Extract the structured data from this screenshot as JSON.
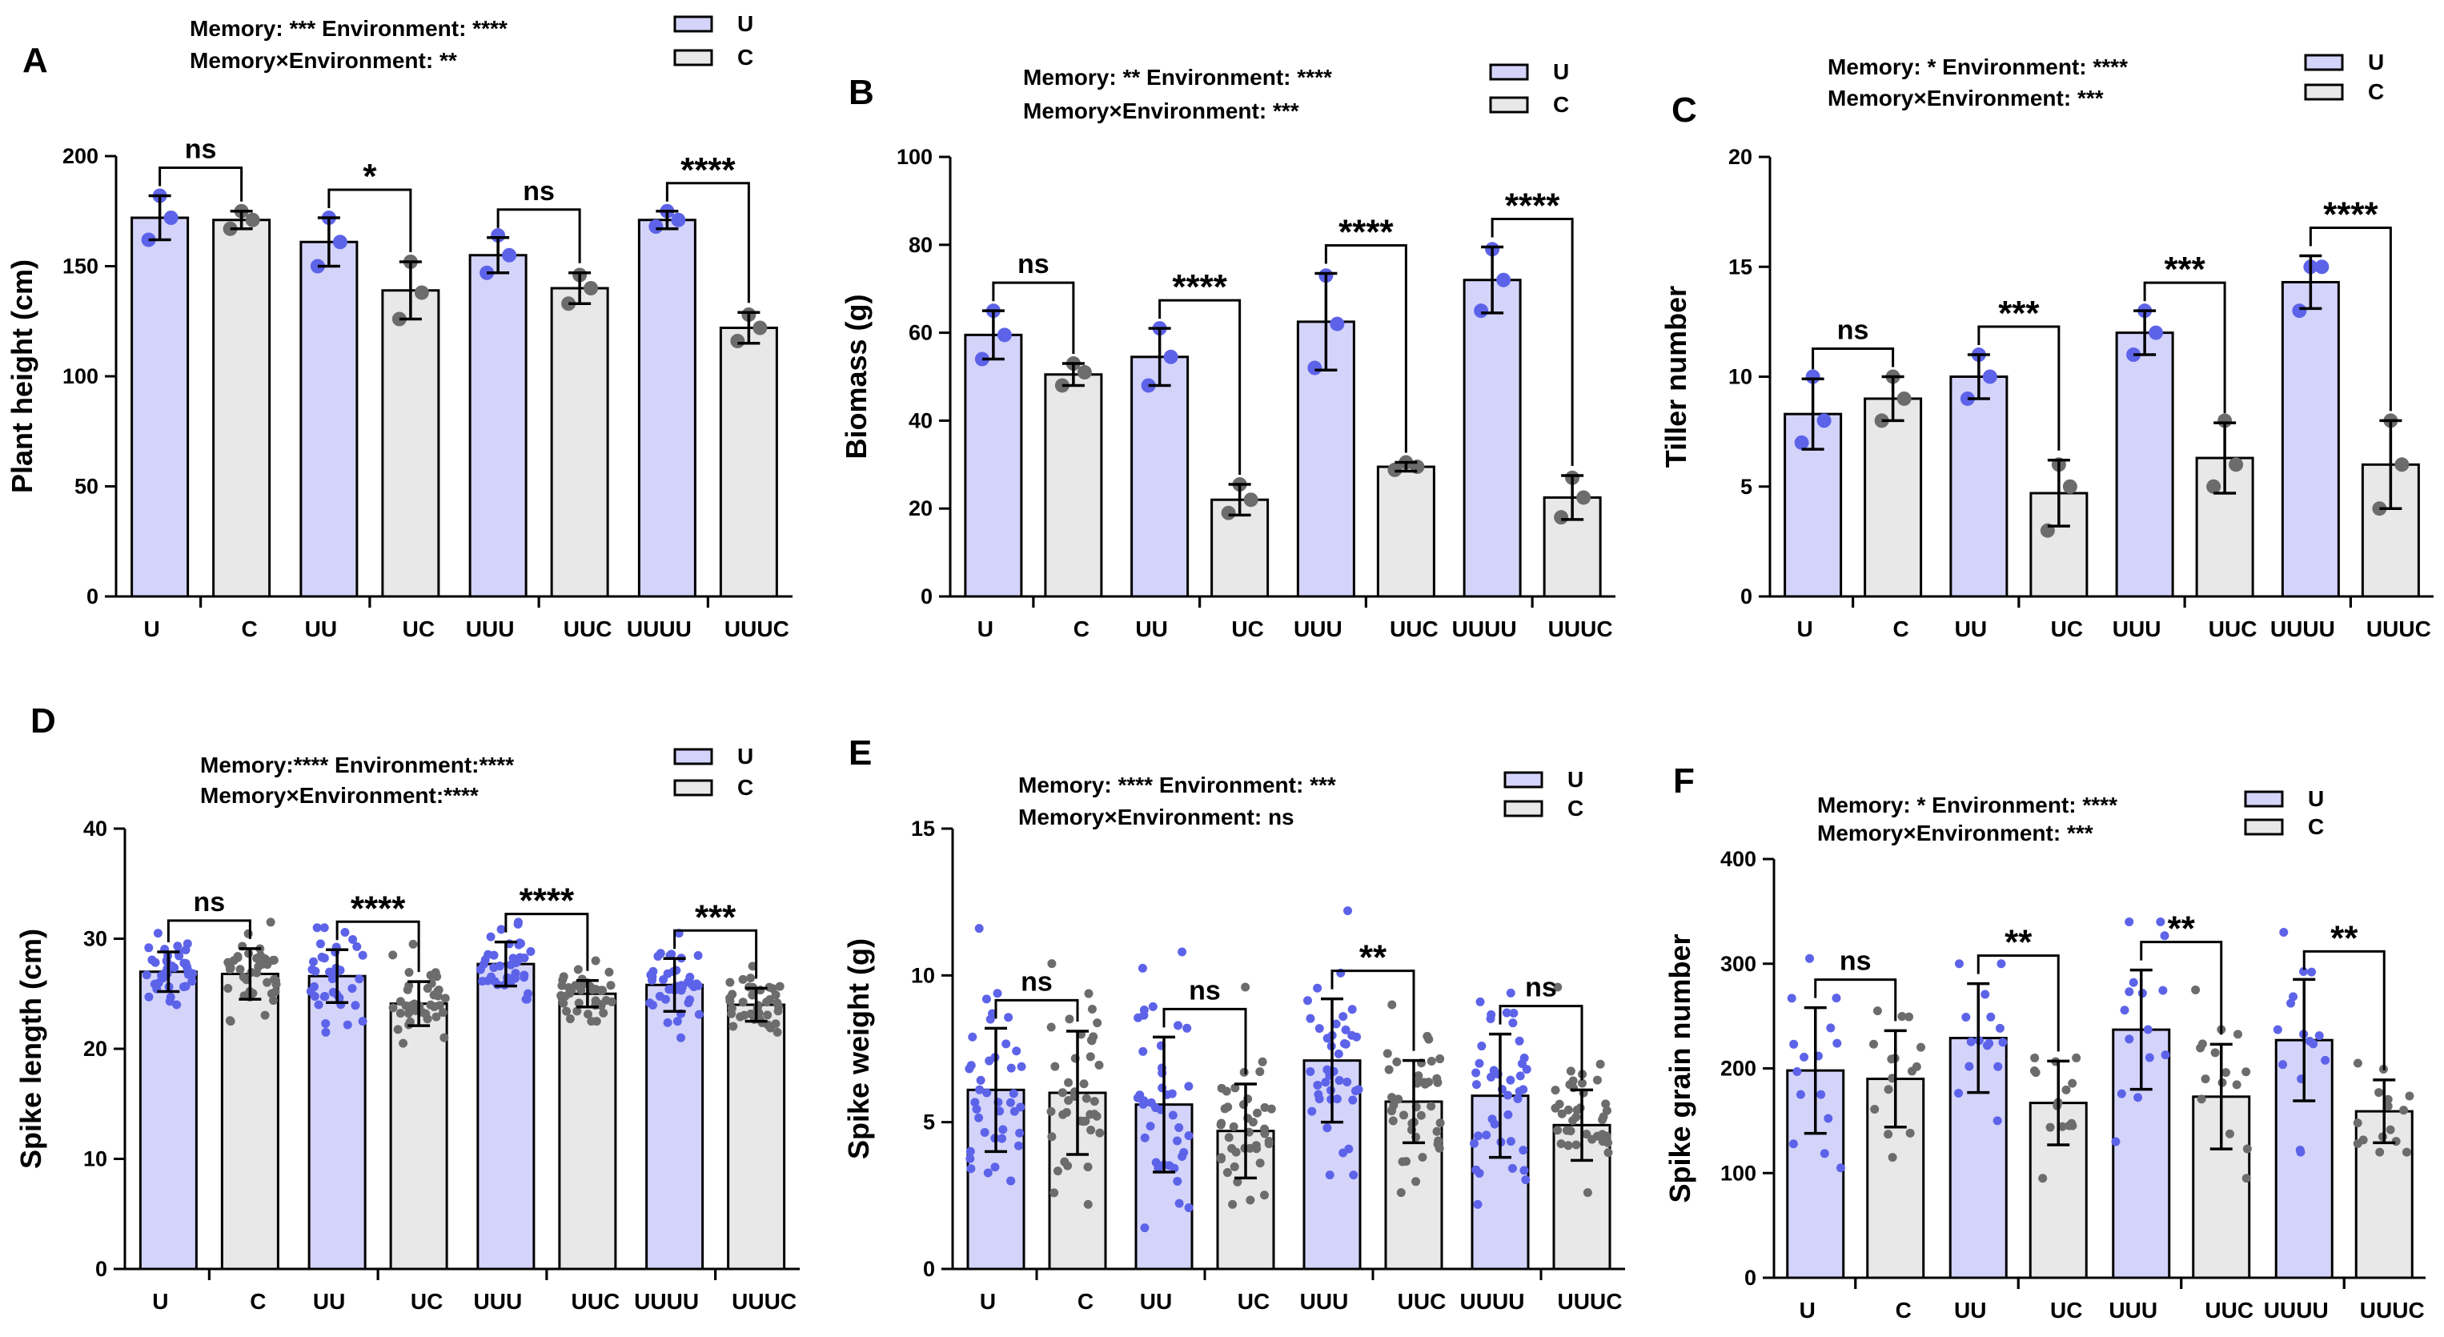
{
  "colors": {
    "u_fill": "#d4d4fb",
    "c_fill": "#e8e8e8",
    "u_dot": "#5d63e8",
    "c_dot": "#6c6c6c",
    "axis": "#000000"
  },
  "legend_labels": {
    "u": "U",
    "c": "C"
  },
  "chart_data": [
    {
      "panel": "A",
      "type": "bar",
      "ylabel": "Plant height (cm)",
      "ylim": [
        0,
        200
      ],
      "yticks": [
        0,
        50,
        100,
        150,
        200
      ],
      "stats_line1": "Memory: ***  Environment: ****",
      "stats_line2": "Memory×Environment: **",
      "categories": [
        "U",
        "C",
        "UU",
        "UC",
        "UUU",
        "UUC",
        "UUUU",
        "UUUC"
      ],
      "groups": [
        "U",
        "C",
        "U",
        "C",
        "U",
        "C",
        "U",
        "C"
      ],
      "values": [
        172,
        171,
        161,
        139,
        155,
        140,
        171,
        122
      ],
      "err": [
        10,
        4,
        11,
        13,
        8,
        7,
        4,
        7
      ],
      "points": [
        [
          182,
          172,
          162
        ],
        [
          175,
          171,
          167
        ],
        [
          172,
          161,
          150
        ],
        [
          152,
          138,
          126
        ],
        [
          164,
          155,
          147
        ],
        [
          146,
          140,
          133
        ],
        [
          175,
          171,
          168
        ],
        [
          128,
          122,
          116
        ]
      ],
      "significance": [
        "ns",
        "*",
        "ns",
        "****"
      ]
    },
    {
      "panel": "B",
      "type": "bar",
      "ylabel": "Biomass (g)",
      "ylim": [
        0,
        100
      ],
      "yticks": [
        0,
        20,
        40,
        60,
        80,
        100
      ],
      "stats_line1": "Memory: **  Environment: ****",
      "stats_line2": "Memory×Environment: ***",
      "categories": [
        "U",
        "C",
        "UU",
        "UC",
        "UUU",
        "UUC",
        "UUUU",
        "UUUC"
      ],
      "groups": [
        "U",
        "C",
        "U",
        "C",
        "U",
        "C",
        "U",
        "C"
      ],
      "values": [
        59.5,
        50.5,
        54.5,
        22,
        62.5,
        29.5,
        72,
        22.5
      ],
      "err": [
        5.5,
        2.5,
        6.5,
        3.5,
        11,
        1,
        7.5,
        5
      ],
      "points": [
        [
          65,
          59.5,
          54
        ],
        [
          53,
          51,
          48
        ],
        [
          61,
          54.5,
          48
        ],
        [
          25.5,
          22,
          19
        ],
        [
          73,
          62,
          52
        ],
        [
          30.5,
          29.5,
          28.8
        ],
        [
          79,
          72,
          65
        ],
        [
          27,
          22.5,
          18
        ]
      ],
      "significance": [
        "ns",
        "****",
        "****",
        "****"
      ]
    },
    {
      "panel": "C",
      "type": "bar",
      "ylabel": "Tiller number",
      "ylim": [
        0,
        20
      ],
      "yticks": [
        0,
        5,
        10,
        15,
        20
      ],
      "stats_line1": "Memory: *  Environment: ****",
      "stats_line2": "Memory×Environment: ***",
      "categories": [
        "U",
        "C",
        "UU",
        "UC",
        "UUU",
        "UUC",
        "UUUU",
        "UUUC"
      ],
      "groups": [
        "U",
        "C",
        "U",
        "C",
        "U",
        "C",
        "U",
        "C"
      ],
      "values": [
        8.3,
        9,
        10,
        4.7,
        12,
        6.3,
        14.3,
        6
      ],
      "err": [
        1.6,
        1,
        1,
        1.5,
        1,
        1.6,
        1.2,
        2
      ],
      "points": [
        [
          10,
          8,
          7
        ],
        [
          10,
          9,
          8
        ],
        [
          11,
          10,
          9
        ],
        [
          6,
          5,
          3
        ],
        [
          13,
          12,
          11
        ],
        [
          8,
          6,
          5
        ],
        [
          15,
          15,
          13
        ],
        [
          8,
          6,
          4
        ]
      ],
      "significance": [
        "ns",
        "***",
        "***",
        "****"
      ]
    },
    {
      "panel": "D",
      "type": "bar",
      "ylabel": "Spike length (cm)",
      "ylim": [
        0,
        40
      ],
      "yticks": [
        0,
        10,
        20,
        30,
        40
      ],
      "stats_line1": "Memory:****  Environment:****",
      "stats_line2": "Memory×Environment:****",
      "categories": [
        "U",
        "C",
        "UU",
        "UC",
        "UUU",
        "UUC",
        "UUUU",
        "UUUC"
      ],
      "groups": [
        "U",
        "C",
        "U",
        "C",
        "U",
        "C",
        "U",
        "C"
      ],
      "values": [
        27,
        26.8,
        26.6,
        24.1,
        27.7,
        25,
        25.8,
        24
      ],
      "err": [
        1.8,
        2.3,
        2.4,
        2,
        2,
        1.2,
        2.4,
        1.5
      ],
      "scatter": {
        "n": 40,
        "min": [
          24,
          22.5,
          21.5,
          20.5,
          24.5,
          22.5,
          21,
          21.5
        ],
        "max": [
          30.5,
          31.5,
          31,
          29.5,
          31.5,
          28,
          30.5,
          27.5
        ]
      },
      "significance": [
        "ns",
        "****",
        "****",
        "***"
      ]
    },
    {
      "panel": "E",
      "type": "bar",
      "ylabel": "Spike weight (g)",
      "ylim": [
        0,
        15
      ],
      "yticks": [
        0,
        5,
        10,
        15
      ],
      "stats_line1": "Memory: ****  Environment: ***",
      "stats_line2": "Memory×Environment: ns",
      "categories": [
        "U",
        "C",
        "UU",
        "UC",
        "UUU",
        "UUC",
        "UUUU",
        "UUUC"
      ],
      "groups": [
        "U",
        "C",
        "U",
        "C",
        "U",
        "C",
        "U",
        "C"
      ],
      "values": [
        6.1,
        6,
        5.6,
        4.7,
        7.1,
        5.7,
        5.9,
        4.9
      ],
      "err": [
        2.1,
        2.1,
        2.3,
        1.6,
        2.1,
        1.4,
        2.1,
        1.2
      ],
      "scatter": {
        "n": 40,
        "min": [
          3,
          2.2,
          1.4,
          2.2,
          3.2,
          2.6,
          2.2,
          2.6
        ],
        "max": [
          11.6,
          10.4,
          10.8,
          9.6,
          12.2,
          9,
          9.4,
          9.6
        ]
      },
      "significance": [
        "ns",
        "ns",
        "**",
        "ns"
      ]
    },
    {
      "panel": "F",
      "type": "bar",
      "ylabel": "Spike grain number",
      "ylim": [
        0,
        400
      ],
      "yticks": [
        0,
        100,
        200,
        300,
        400
      ],
      "stats_line1": "Memory: *  Environment: ****",
      "stats_line2": "Memory×Environment: ***",
      "categories": [
        "U",
        "C",
        "UU",
        "UC",
        "UUU",
        "UUC",
        "UUUU",
        "UUUC"
      ],
      "groups": [
        "U",
        "C",
        "U",
        "C",
        "U",
        "C",
        "U",
        "C"
      ],
      "values": [
        198,
        190,
        229,
        167,
        237,
        173,
        227,
        159
      ],
      "err": [
        60,
        46,
        52,
        40,
        57,
        50,
        58,
        30
      ],
      "scatter": {
        "n": 15,
        "min": [
          105,
          115,
          150,
          95,
          130,
          95,
          120,
          120
        ],
        "max": [
          305,
          255,
          300,
          210,
          340,
          275,
          330,
          205
        ]
      },
      "significance": [
        "ns",
        "**",
        "**",
        "**"
      ]
    }
  ]
}
